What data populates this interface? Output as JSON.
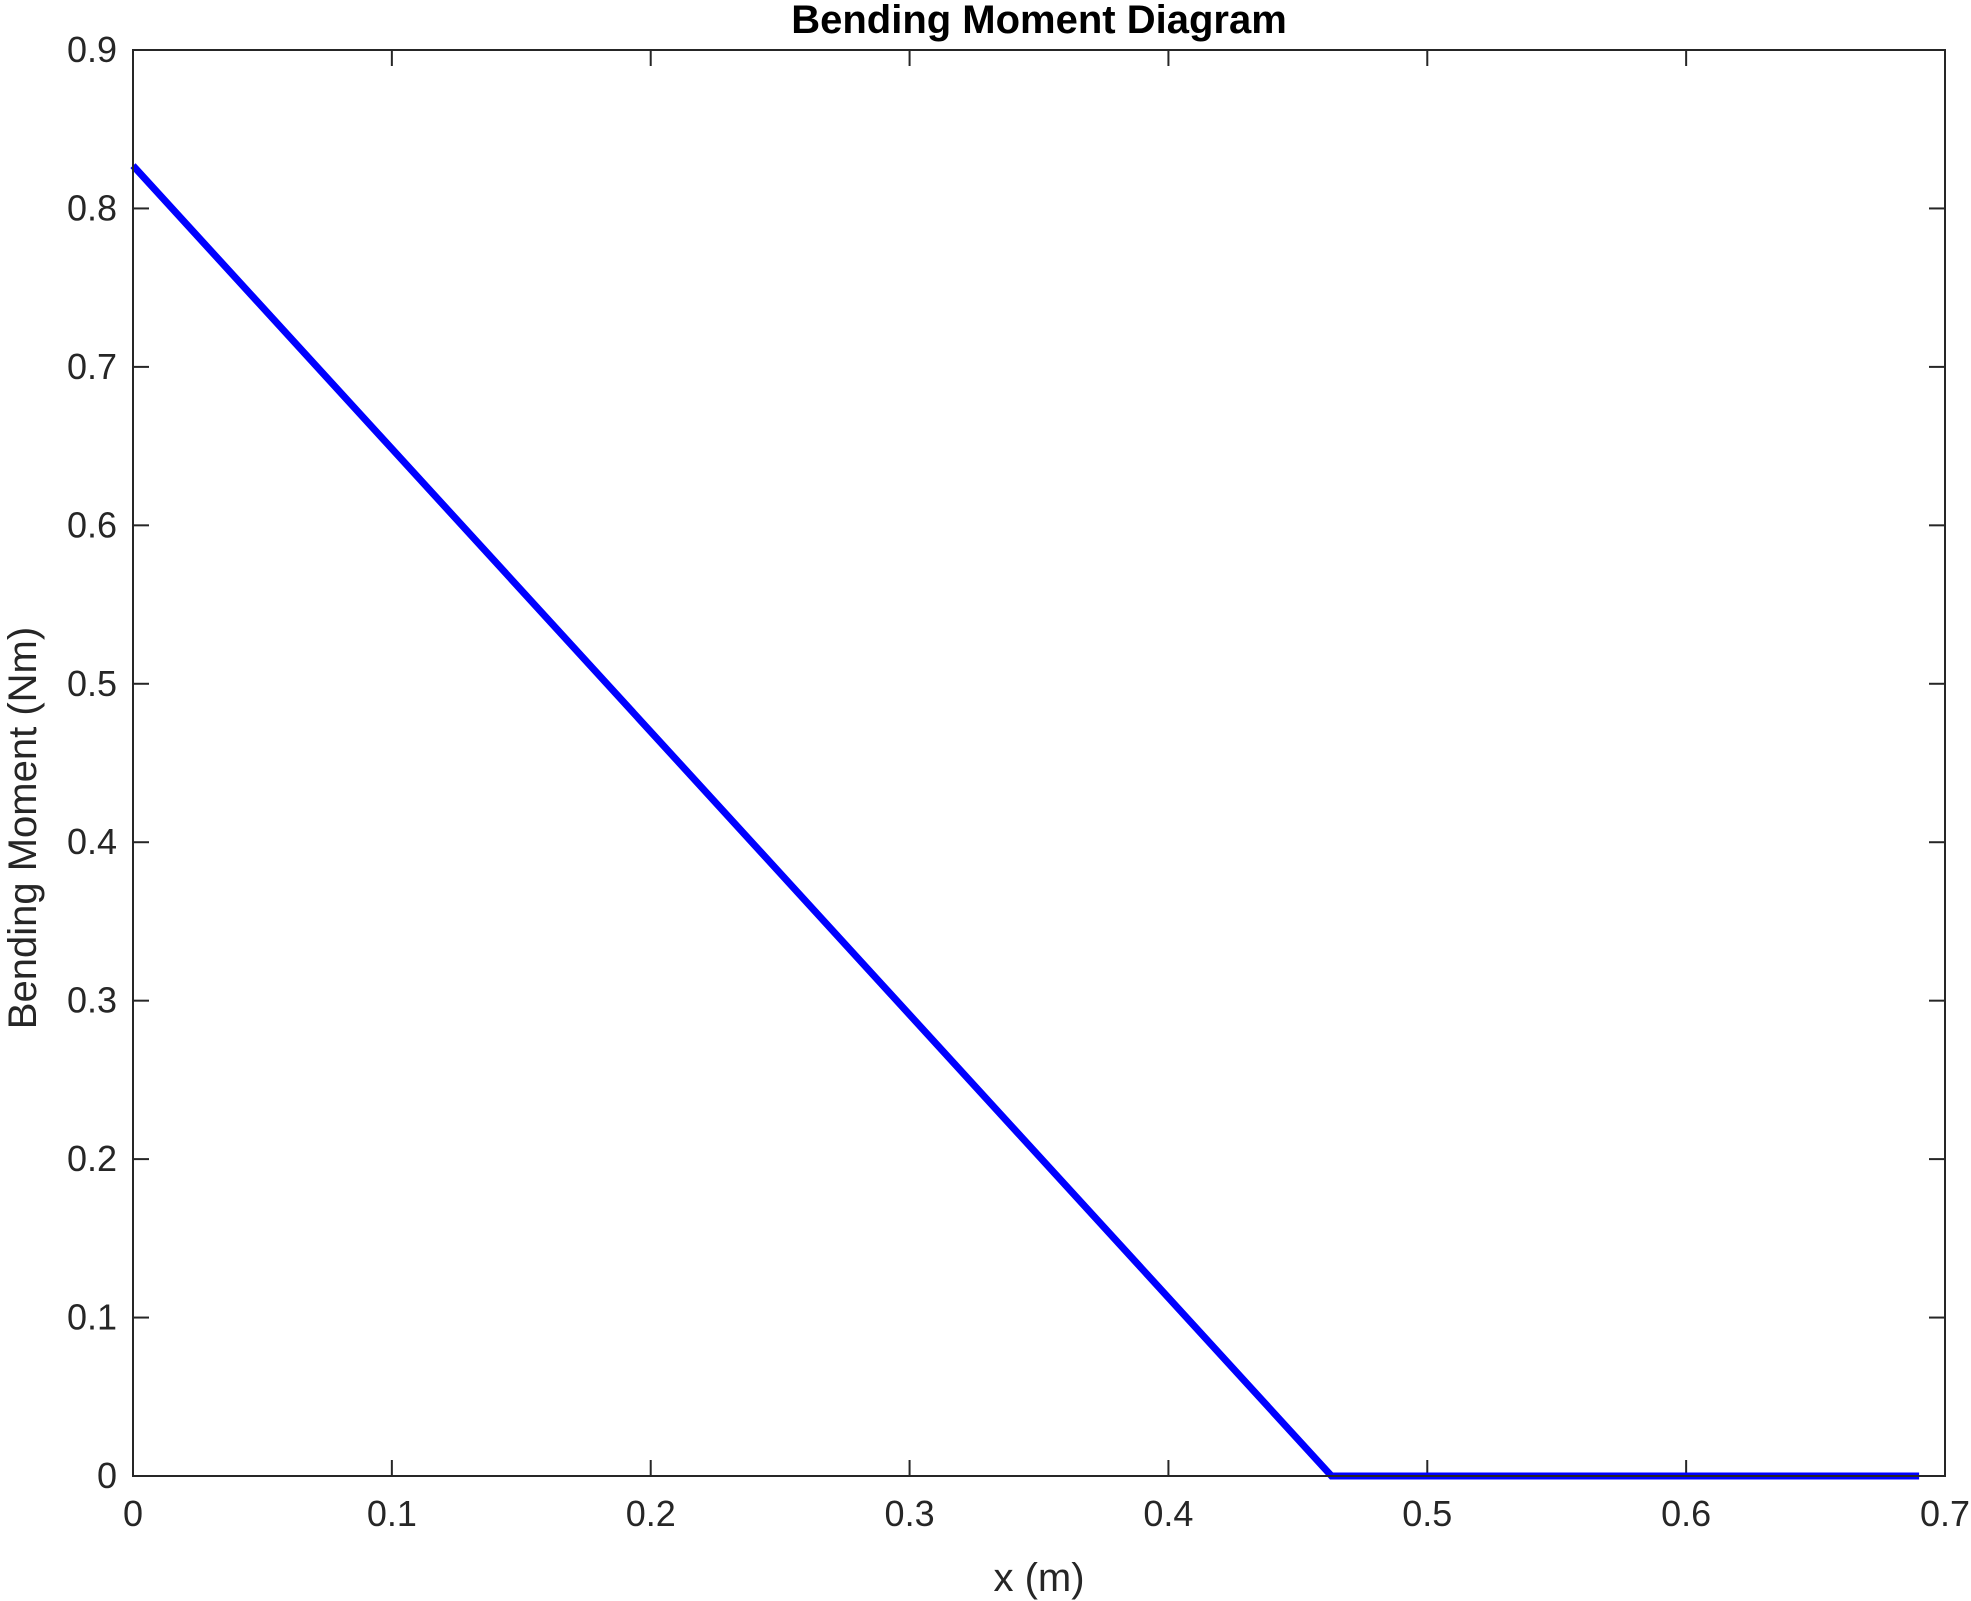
{
  "chart_data": {
    "type": "line",
    "title": "Bending Moment Diagram",
    "xlabel": "x (m)",
    "ylabel": "Bending Moment (Nm)",
    "xlim": [
      0,
      0.7
    ],
    "ylim": [
      0,
      0.9
    ],
    "xticks": [
      0,
      0.1,
      0.2,
      0.3,
      0.4,
      0.5,
      0.6,
      0.7
    ],
    "yticks": [
      0,
      0.1,
      0.2,
      0.3,
      0.4,
      0.5,
      0.6,
      0.7,
      0.8,
      0.9
    ],
    "xtick_labels": [
      "0",
      "0.1",
      "0.2",
      "0.3",
      "0.4",
      "0.5",
      "0.6",
      "0.7"
    ],
    "ytick_labels": [
      "0",
      "0.1",
      "0.2",
      "0.3",
      "0.4",
      "0.5",
      "0.6",
      "0.7",
      "0.8",
      "0.9"
    ],
    "grid": false,
    "series": [
      {
        "color": "#0000ff",
        "x": [
          0,
          0.463,
          0.69
        ],
        "y": [
          0.827,
          0,
          0
        ]
      }
    ]
  }
}
